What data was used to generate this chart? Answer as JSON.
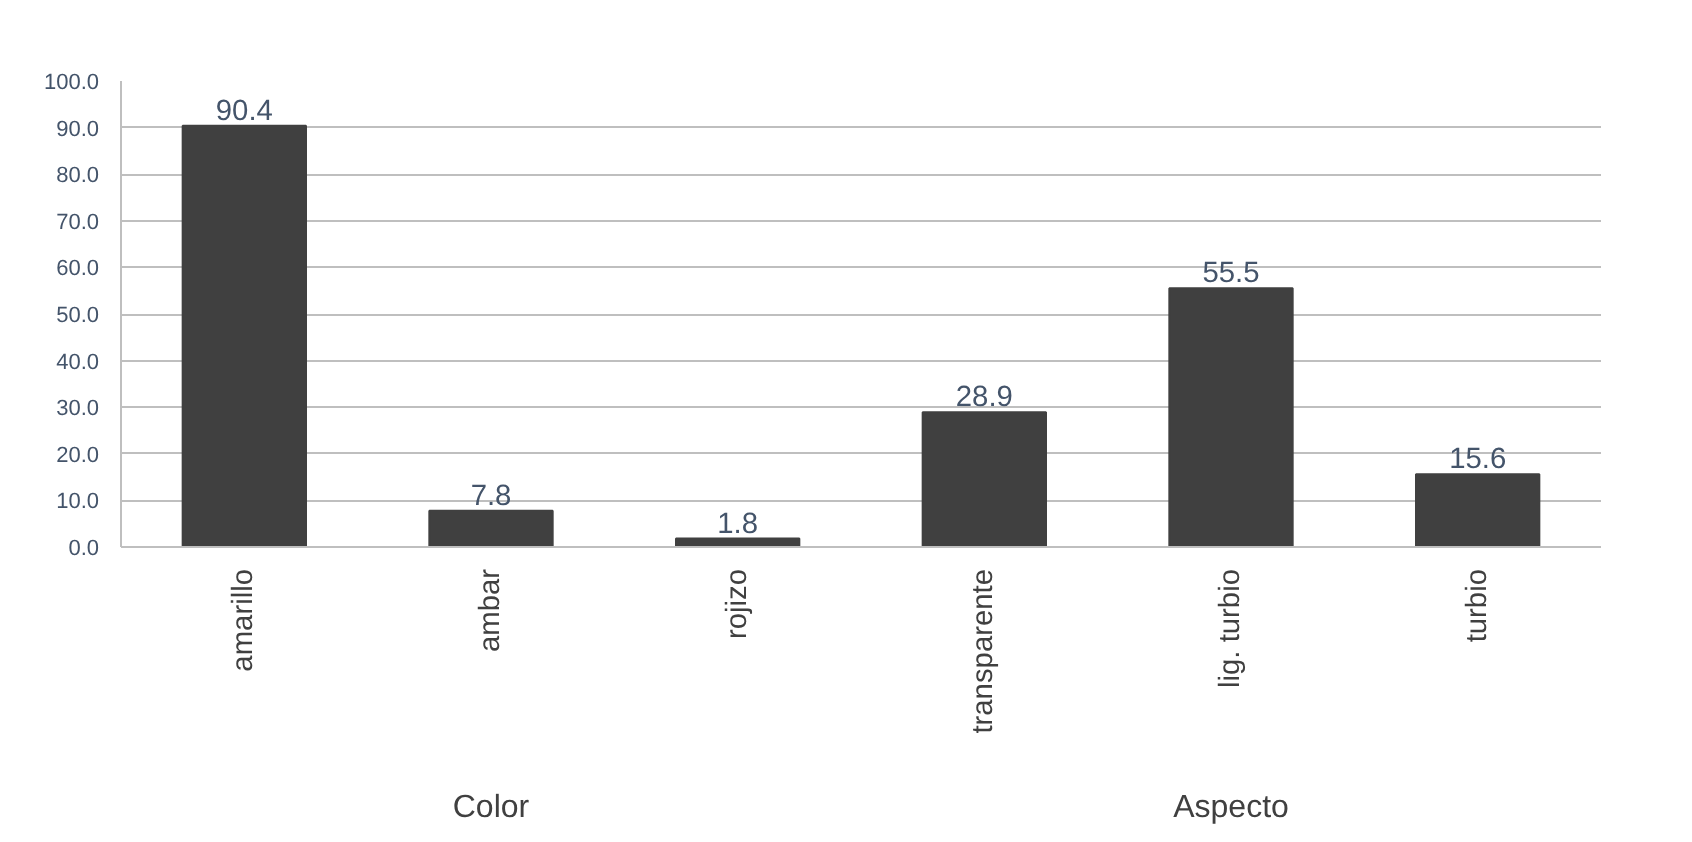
{
  "chart_data": {
    "type": "bar",
    "categories": [
      "amarillo",
      "ambar",
      "rojizo",
      "transparente",
      "lig. turbio",
      "turbio"
    ],
    "values": [
      90.4,
      7.8,
      1.8,
      28.9,
      55.5,
      15.6
    ],
    "color": "#404040",
    "ylim": [
      0,
      100
    ],
    "yticks": [
      {
        "value": 0,
        "label": "0.0"
      },
      {
        "value": 10,
        "label": "10.0"
      },
      {
        "value": 20,
        "label": "20.0"
      },
      {
        "value": 30,
        "label": "30.0"
      },
      {
        "value": 40,
        "label": "40.0"
      },
      {
        "value": 50,
        "label": "50.0"
      },
      {
        "value": 60,
        "label": "60.0"
      },
      {
        "value": 70,
        "label": "70.0"
      },
      {
        "value": 80,
        "label": "80.0"
      },
      {
        "value": 90,
        "label": "90.0"
      },
      {
        "value": 100,
        "label": "100.0"
      }
    ],
    "grid": "y",
    "data_labels": true,
    "annotations": [
      "Color",
      "Aspecto"
    ]
  }
}
